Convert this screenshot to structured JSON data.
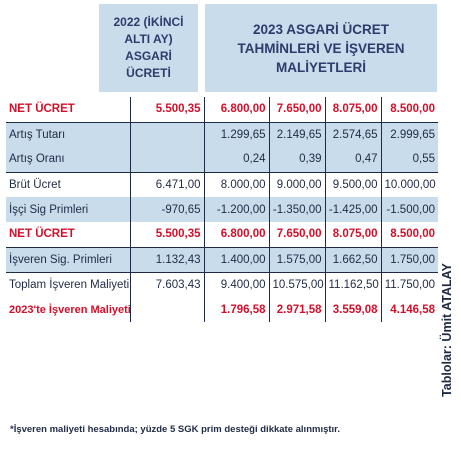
{
  "header": {
    "col2022": "2022 (İKİNCİ ALTI AY) ASGARİ ÜCRETİ",
    "col2023": "2023 ASGARİ ÜCRET TAHMİNLERİ VE İŞVEREN MALİYETLERİ"
  },
  "rows": [
    {
      "label": "NET ÜCRET",
      "v2022": "5.500,35",
      "values": [
        "6.800,00",
        "7.650,00",
        "8.075,00",
        "8.500,00"
      ]
    },
    {
      "label": "Artış Tutarı",
      "v2022": "",
      "values": [
        "1.299,65",
        "2.149,65",
        "2.574,65",
        "2.999,65"
      ]
    },
    {
      "label": "Artış Oranı",
      "v2022": "",
      "values": [
        "0,24",
        "0,39",
        "0,47",
        "0,55"
      ]
    },
    {
      "label": "Brüt Ücret",
      "v2022": "6.471,00",
      "values": [
        "8.000,00",
        "9.000,00",
        "9.500,00",
        "10.000,00"
      ]
    },
    {
      "label": "İşçi Sig Primleri",
      "v2022": "-970,65",
      "values": [
        "-1.200,00",
        "-1.350,00",
        "-1.425,00",
        "-1.500,00"
      ]
    },
    {
      "label": "NET ÜCRET",
      "v2022": "5.500,35",
      "values": [
        "6.800,00",
        "7.650,00",
        "8.075,00",
        "8.500,00"
      ]
    },
    {
      "label": "İşveren Sig. Primleri",
      "v2022": "1.132,43",
      "values": [
        "1.400,00",
        "1.575,00",
        "1.662,50",
        "1.750,00"
      ]
    },
    {
      "label": "Toplam İşveren Maliyeti",
      "v2022": "7.603,43",
      "values": [
        "9.400,00",
        "10.575,00",
        "11.162,50",
        "11.750,00"
      ]
    },
    {
      "label": "2023'te İşveren Maliyeti Artışı",
      "v2022": "",
      "values": [
        "1.796,58",
        "2.971,58",
        "3.559,08",
        "4.146,58"
      ]
    }
  ],
  "footnote": "*İşveren maliyeti hesabında; yüzde 5 SGK prim desteği dikkate alınmıştır.",
  "credit": "Tablolar: Ümit ATALAY",
  "colors": {
    "accent_red": "#d0112b",
    "shade_blue": "#c9dcec",
    "text_navy": "#1f2a44"
  }
}
